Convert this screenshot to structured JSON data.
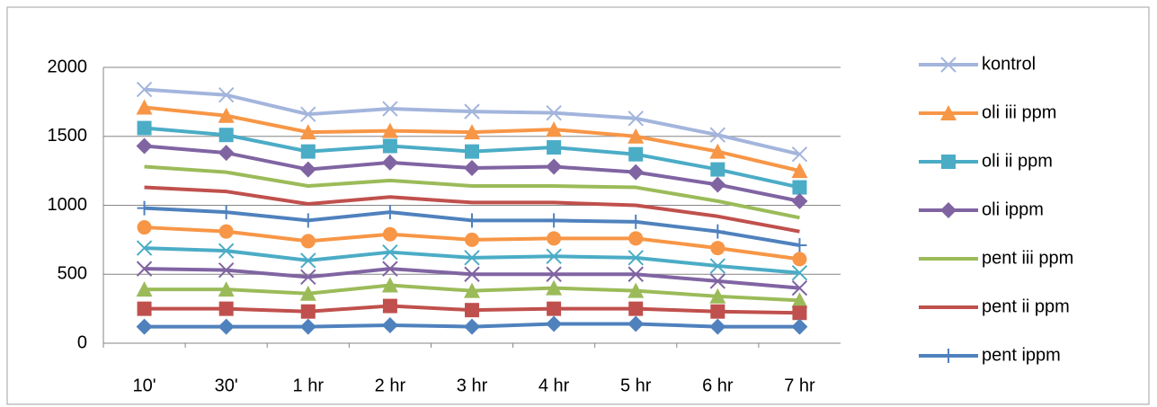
{
  "chart_data": {
    "type": "line",
    "categories": [
      "10'",
      "30'",
      "1 hr",
      "2 hr",
      "3 hr",
      "4 hr",
      "5 hr",
      "6 hr",
      "7 hr"
    ],
    "ylim": [
      0,
      2000
    ],
    "yticks": [
      0,
      500,
      1000,
      1500,
      2000
    ],
    "grid": true,
    "legend": "right",
    "series": [
      {
        "name": "kontrol",
        "color": "#a3b5dc",
        "marker": "x",
        "values": [
          1840,
          1800,
          1660,
          1700,
          1680,
          1670,
          1630,
          1510,
          1370
        ]
      },
      {
        "name": "oli iii ppm",
        "color": "#f79646",
        "marker": "triangle",
        "values": [
          1710,
          1650,
          1530,
          1540,
          1530,
          1550,
          1500,
          1390,
          1250
        ]
      },
      {
        "name": "oli ii ppm",
        "color": "#4bacc6",
        "marker": "square",
        "values": [
          1560,
          1510,
          1390,
          1430,
          1390,
          1420,
          1370,
          1260,
          1130
        ]
      },
      {
        "name": "oli ippm",
        "color": "#8064a2",
        "marker": "diamond",
        "values": [
          1430,
          1380,
          1260,
          1310,
          1270,
          1280,
          1240,
          1150,
          1030
        ]
      },
      {
        "name": "pent iii ppm",
        "color": "#9bbb59",
        "marker": "none",
        "values": [
          1280,
          1240,
          1140,
          1180,
          1140,
          1140,
          1130,
          1030,
          910
        ]
      },
      {
        "name": "pent ii ppm",
        "color": "#c0504d",
        "marker": "none",
        "values": [
          1130,
          1100,
          1010,
          1060,
          1020,
          1020,
          1000,
          920,
          810
        ]
      },
      {
        "name": "pent ippm",
        "color": "#4f81bd",
        "marker": "plus",
        "values": [
          980,
          950,
          890,
          950,
          890,
          890,
          880,
          810,
          710
        ]
      },
      {
        "color": "#f79646",
        "marker": "circle",
        "values": [
          840,
          810,
          740,
          790,
          750,
          760,
          760,
          690,
          610
        ]
      },
      {
        "color": "#4bacc6",
        "marker": "x",
        "values": [
          690,
          670,
          600,
          660,
          620,
          630,
          620,
          560,
          510
        ]
      },
      {
        "color": "#8064a2",
        "marker": "x",
        "values": [
          540,
          530,
          480,
          540,
          500,
          500,
          500,
          450,
          400
        ]
      },
      {
        "color": "#9bbb59",
        "marker": "triangle",
        "values": [
          390,
          390,
          360,
          420,
          380,
          400,
          380,
          340,
          310
        ]
      },
      {
        "color": "#c0504d",
        "marker": "square",
        "values": [
          250,
          250,
          230,
          270,
          240,
          250,
          250,
          230,
          220
        ]
      },
      {
        "color": "#4f81bd",
        "marker": "diamond",
        "values": [
          120,
          120,
          120,
          130,
          120,
          140,
          140,
          120,
          120
        ]
      }
    ]
  }
}
